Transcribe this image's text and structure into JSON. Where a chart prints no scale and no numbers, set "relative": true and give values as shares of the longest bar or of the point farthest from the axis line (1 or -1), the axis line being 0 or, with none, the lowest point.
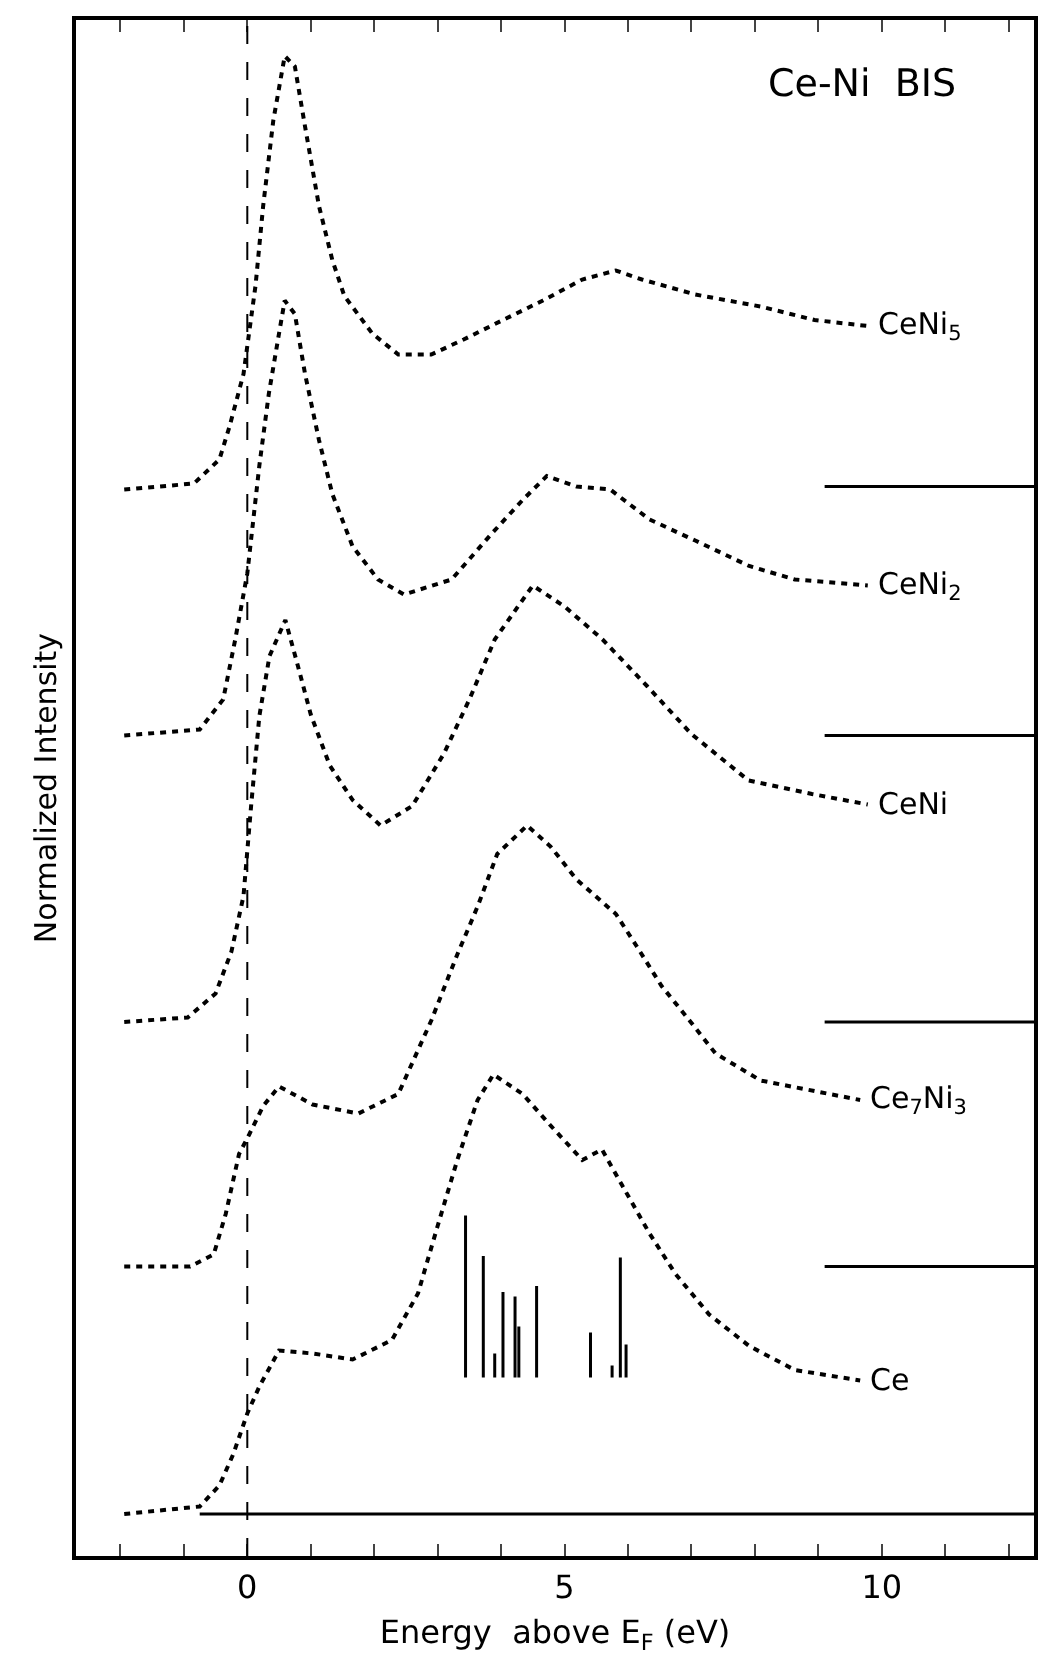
{
  "chart_data": {
    "type": "line",
    "relative": true,
    "title": "Ce-Ni  BIS",
    "xlabel": "Energy  above E$_{F}$ (eV)",
    "ylabel": "Normalized Intensity",
    "xlim": [
      -2.7,
      12.4
    ],
    "xticks": [
      {
        "value": -2,
        "label": null
      },
      {
        "value": -1,
        "label": null
      },
      0,
      {
        "value": 1,
        "label": null
      },
      {
        "value": 2,
        "label": null
      },
      {
        "value": 3,
        "label": null
      },
      {
        "value": 4,
        "label": null
      },
      5,
      {
        "value": 6,
        "label": null
      },
      {
        "value": 7,
        "label": null
      },
      {
        "value": 8,
        "label": null
      },
      {
        "value": 9,
        "label": null
      },
      10,
      {
        "value": 11,
        "label": null
      },
      {
        "value": 12,
        "label": null
      }
    ],
    "line_style": "dotted",
    "series": [
      {
        "name": "CeNi$_{5}$",
        "color": "#000000",
        "x": [
          -1.94,
          -0.84,
          -0.44,
          -0.28,
          -0.06,
          0.13,
          0.25,
          0.41,
          0.59,
          0.75,
          0.91,
          1.13,
          1.34,
          1.53,
          1.97,
          2.38,
          2.9,
          3.41,
          4.03,
          4.66,
          5.28,
          5.81,
          6.22,
          7.06,
          8.09,
          8.94,
          9.78
        ],
        "values": [
          0.711,
          0.715,
          0.731,
          0.753,
          0.788,
          0.847,
          0.9,
          0.957,
          1.0,
          0.993,
          0.953,
          0.9,
          0.864,
          0.84,
          0.815,
          0.801,
          0.801,
          0.811,
          0.824,
          0.837,
          0.851,
          0.857,
          0.851,
          0.841,
          0.833,
          0.824,
          0.82
        ]
      },
      {
        "name": "CeNi$_{2}$",
        "color": "#000000",
        "x": [
          -1.94,
          -0.75,
          -0.38,
          -0.19,
          0.0,
          0.19,
          0.34,
          0.5,
          0.59,
          0.75,
          0.91,
          1.13,
          1.34,
          1.66,
          2.06,
          2.47,
          3.22,
          3.84,
          4.34,
          4.72,
          5.19,
          5.72,
          6.34,
          7.06,
          7.91,
          8.63,
          9.78
        ],
        "values": [
          0.547,
          0.551,
          0.571,
          0.611,
          0.655,
          0.727,
          0.775,
          0.815,
          0.837,
          0.828,
          0.788,
          0.744,
          0.708,
          0.673,
          0.651,
          0.641,
          0.651,
          0.681,
          0.704,
          0.72,
          0.713,
          0.711,
          0.691,
          0.677,
          0.66,
          0.651,
          0.647
        ]
      },
      {
        "name": "CeNi",
        "color": "#000000",
        "x": [
          -1.94,
          -0.94,
          -0.5,
          -0.25,
          -0.06,
          0.06,
          0.19,
          0.35,
          0.6,
          0.8,
          1.0,
          1.3,
          1.66,
          2.1,
          2.6,
          3.1,
          3.5,
          3.9,
          4.5,
          5.0,
          5.6,
          6.3,
          7.0,
          7.9,
          8.9,
          9.78
        ],
        "values": [
          0.356,
          0.359,
          0.375,
          0.403,
          0.44,
          0.5,
          0.56,
          0.6,
          0.624,
          0.593,
          0.561,
          0.527,
          0.504,
          0.487,
          0.5,
          0.535,
          0.571,
          0.611,
          0.647,
          0.633,
          0.611,
          0.58,
          0.548,
          0.517,
          0.508,
          0.501
        ]
      },
      {
        "name": "Ce$_{7}$Ni$_{3}$",
        "color": "#000000",
        "x": [
          -1.94,
          -0.9,
          -0.53,
          -0.34,
          -0.13,
          0.03,
          0.25,
          0.5,
          1.03,
          1.75,
          2.38,
          2.9,
          3.31,
          3.63,
          3.94,
          4.41,
          4.78,
          5.19,
          5.81,
          6.13,
          6.53,
          6.97,
          7.38,
          8.09,
          9.66
        ],
        "values": [
          0.193,
          0.193,
          0.201,
          0.228,
          0.268,
          0.281,
          0.3,
          0.313,
          0.301,
          0.295,
          0.308,
          0.357,
          0.401,
          0.433,
          0.468,
          0.487,
          0.473,
          0.451,
          0.428,
          0.407,
          0.38,
          0.357,
          0.335,
          0.317,
          0.304
        ]
      },
      {
        "name": "Ce",
        "color": "#000000",
        "x": [
          -1.94,
          -0.75,
          -0.44,
          -0.22,
          0.0,
          0.19,
          0.5,
          1.03,
          1.66,
          2.28,
          2.69,
          3.0,
          3.31,
          3.63,
          3.88,
          4.34,
          4.78,
          5.28,
          5.59,
          5.91,
          6.34,
          6.75,
          7.28,
          7.91,
          8.63,
          9.66
        ],
        "values": [
          0.028,
          0.033,
          0.047,
          0.068,
          0.095,
          0.113,
          0.137,
          0.135,
          0.131,
          0.144,
          0.175,
          0.22,
          0.264,
          0.304,
          0.321,
          0.308,
          0.287,
          0.264,
          0.271,
          0.247,
          0.215,
          0.188,
          0.161,
          0.14,
          0.124,
          0.117
        ]
      },
      {
        "color": "#000000",
        "line_style": "solid",
        "x": [
          3.44,
          3.44,
          null,
          3.72,
          3.72,
          null,
          3.9,
          3.9,
          null,
          4.03,
          4.03,
          null,
          4.22,
          4.22,
          null,
          4.28,
          4.28,
          null,
          4.56,
          4.56,
          null,
          5.41,
          5.41,
          null,
          5.75,
          5.75,
          null,
          5.88,
          5.88,
          null,
          5.97,
          5.97
        ],
        "values": [
          0.119,
          0.227,
          null,
          0.119,
          0.2,
          null,
          0.119,
          0.135,
          null,
          0.119,
          0.176,
          null,
          0.119,
          0.173,
          null,
          0.119,
          0.153,
          null,
          0.119,
          0.18,
          null,
          0.119,
          0.149,
          null,
          0.119,
          0.127,
          null,
          0.119,
          0.199,
          null,
          0.119,
          0.141
        ]
      },
      {
        "color": "#000000",
        "line_style": "solid",
        "x": [
          9.1,
          12.4
        ],
        "values": [
          0.713,
          0.713
        ]
      },
      {
        "color": "#000000",
        "line_style": "solid",
        "x": [
          9.1,
          12.4
        ],
        "values": [
          0.547,
          0.547
        ]
      },
      {
        "color": "#000000",
        "line_style": "solid",
        "x": [
          9.1,
          12.4
        ],
        "values": [
          0.356,
          0.356
        ]
      },
      {
        "color": "#000000",
        "line_style": "solid",
        "x": [
          9.1,
          12.4
        ],
        "values": [
          0.193,
          0.193
        ]
      },
      {
        "color": "#000000",
        "line_style": "solid",
        "x": [
          -0.75,
          12.4
        ],
        "values": [
          0.028,
          0.028
        ]
      }
    ],
    "ref_lines": [
      {
        "axis": "x",
        "value": 0,
        "color": "#000000",
        "line_style": "dashed"
      }
    ]
  }
}
